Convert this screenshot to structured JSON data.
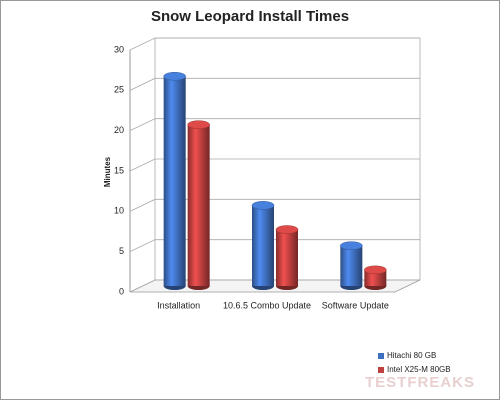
{
  "chart_data": {
    "type": "bar",
    "title": "Snow Leopard Install Times",
    "y_label": "Minutes",
    "categories": [
      "Installation",
      "10.6.5 Combo Update",
      "Software Update"
    ],
    "series": [
      {
        "name": "Hitachi 80 GB",
        "color": "#3f6fc0",
        "values": [
          26,
          10,
          5
        ]
      },
      {
        "name": "Intel X25-M 80GB",
        "color": "#c0403f",
        "values": [
          20,
          7,
          2
        ]
      }
    ],
    "ylim": [
      0,
      30
    ],
    "yticks": [
      0,
      5,
      10,
      15,
      20,
      25,
      30
    ],
    "grid": true,
    "legend": "bottom-right",
    "watermark": "TESTFREAKS"
  }
}
